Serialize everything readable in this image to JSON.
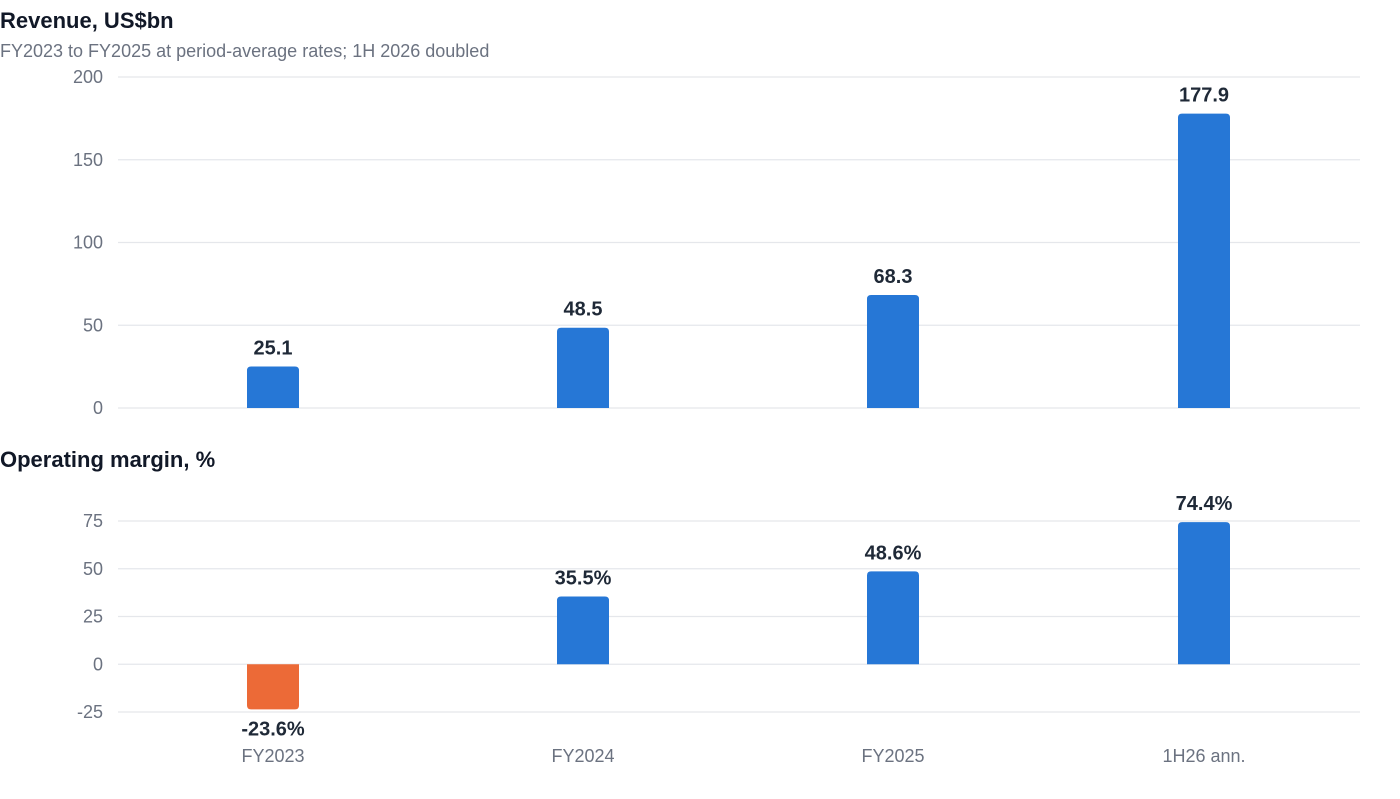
{
  "chart_data": [
    {
      "type": "bar",
      "title": "Revenue, US$bn",
      "subtitle": "FY2023 to FY2025 at period-average rates; 1H 2026 doubled",
      "categories": [
        "FY2023",
        "FY2024",
        "FY2025",
        "1H26 ann."
      ],
      "values": [
        25.1,
        48.5,
        68.3,
        177.9
      ],
      "value_labels": [
        "25.1",
        "48.5",
        "68.3",
        "177.9"
      ],
      "ylim": [
        0,
        200
      ],
      "yticks": [
        0,
        50,
        100,
        150,
        200
      ],
      "grid": true,
      "colors": {
        "positive": "#2677d6"
      }
    },
    {
      "type": "bar",
      "title": "Operating margin, %",
      "categories": [
        "FY2023",
        "FY2024",
        "FY2025",
        "1H26 ann."
      ],
      "values": [
        -23.6,
        35.5,
        48.6,
        74.4
      ],
      "value_labels": [
        "-23.6%",
        "35.5%",
        "48.6%",
        "74.4%"
      ],
      "ylim": [
        -25,
        75
      ],
      "yticks": [
        -25,
        0,
        25,
        50,
        75
      ],
      "grid": true,
      "colors": {
        "positive": "#2677d6",
        "negative": "#ec6a37"
      }
    }
  ]
}
